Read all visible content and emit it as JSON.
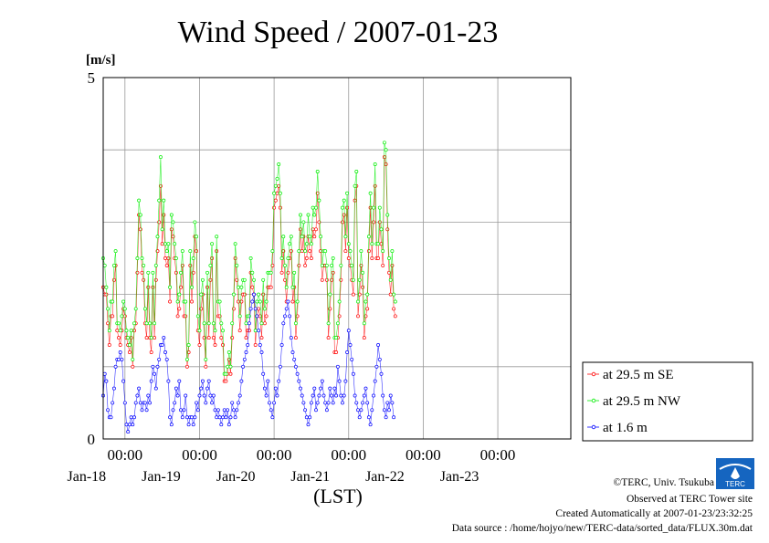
{
  "chart_data": {
    "type": "line",
    "title": "Wind Speed / 2007-01-23",
    "ylabel": "[m/s]",
    "xlabel": "(LST)",
    "ylim": [
      0,
      5
    ],
    "yticks": [
      "0",
      "5"
    ],
    "grid": true,
    "legend_placement": "right",
    "x_start": "2007-01-17T17:00",
    "x_end": "2007-01-23T23:30",
    "x_interval": "30 min",
    "xticks": [
      {
        "time": "00:00",
        "date": "Jan-18"
      },
      {
        "time": "00:00",
        "date": "Jan-19"
      },
      {
        "time": "00:00",
        "date": "Jan-20"
      },
      {
        "time": "00:00",
        "date": "Jan-21"
      },
      {
        "time": "00:00",
        "date": "Jan-22"
      },
      {
        "time": "00:00",
        "date": "Jan-23"
      }
    ],
    "series": [
      {
        "name": "at 29.5 m SE",
        "color": "#ff0000",
        "values": [
          2.1,
          2.0,
          2.0,
          1.6,
          1.3,
          1.7,
          1.7,
          2.2,
          2.4,
          1.5,
          1.4,
          1.3,
          1.5,
          1.8,
          1.7,
          1.4,
          1.3,
          1.2,
          1.4,
          1.0,
          1.5,
          1.6,
          2.3,
          3.1,
          2.9,
          2.3,
          2.2,
          1.6,
          1.4,
          2.1,
          1.4,
          1.2,
          2.1,
          1.4,
          2.2,
          2.6,
          3.0,
          3.5,
          2.7,
          3.1,
          2.5,
          2.4,
          2.5,
          1.9,
          2.9,
          2.8,
          2.5,
          2.3,
          1.7,
          1.8,
          2.1,
          2.4,
          1.7,
          1.7,
          1.0,
          1.2,
          2.4,
          1.9,
          2.3,
          2.8,
          2.6,
          1.5,
          1.3,
          1.8,
          2.0,
          1.4,
          1.0,
          2.1,
          1.4,
          2.2,
          2.5,
          1.4,
          1.3,
          2.6,
          1.7,
          1.7,
          1.4,
          1.3,
          0.8,
          0.8,
          0.9,
          1.1,
          0.9,
          1.4,
          1.8,
          2.5,
          2.2,
          1.9,
          1.5,
          1.9,
          2.0,
          2.0,
          1.4,
          1.5,
          1.5,
          2.3,
          2.1,
          2.0,
          1.3,
          1.7,
          1.8,
          1.7,
          1.4,
          2.0,
          1.6,
          1.7,
          2.1,
          2.1,
          2.1,
          2.4,
          3.2,
          3.3,
          3.4,
          3.5,
          3.2,
          2.3,
          2.6,
          2.2,
          1.9,
          2.3,
          2.5,
          2.6,
          1.9,
          2.1,
          1.4,
          1.7,
          2.4,
          2.9,
          2.6,
          2.8,
          2.4,
          2.5,
          2.8,
          2.6,
          2.5,
          2.9,
          2.8,
          2.9,
          3.4,
          3.0,
          2.6,
          2.2,
          2.4,
          2.4,
          2.2,
          1.4,
          1.8,
          2.2,
          2.3,
          1.2,
          1.2,
          1.4,
          1.7,
          2.2,
          3.0,
          3.1,
          2.6,
          3.2,
          2.5,
          2.4,
          2.2,
          2.0,
          3.3,
          3.5,
          1.7,
          2.0,
          2.4,
          2.1,
          1.4,
          1.7,
          1.8,
          2.6,
          3.2,
          2.5,
          3.0,
          3.5,
          2.5,
          2.5,
          3.0,
          2.7,
          2.4,
          3.9,
          3.8,
          2.9,
          2.3,
          2.0,
          2.4,
          1.8,
          1.7
        ]
      },
      {
        "name": "at 29.5 m NW",
        "color": "#00ee00",
        "values": [
          2.5,
          2.4,
          2.1,
          1.8,
          1.5,
          1.9,
          1.9,
          2.4,
          2.6,
          1.6,
          1.6,
          1.5,
          1.7,
          1.9,
          1.8,
          1.5,
          1.4,
          1.3,
          1.5,
          1.1,
          1.6,
          1.8,
          2.5,
          3.3,
          3.1,
          2.5,
          2.4,
          1.8,
          1.6,
          2.3,
          1.6,
          1.4,
          2.3,
          1.6,
          2.4,
          2.8,
          3.3,
          3.9,
          2.9,
          3.3,
          2.7,
          2.6,
          2.7,
          2.1,
          3.1,
          3.0,
          2.7,
          2.5,
          1.9,
          2.0,
          2.3,
          2.6,
          1.9,
          1.9,
          1.1,
          1.3,
          2.6,
          2.1,
          2.5,
          3.0,
          2.8,
          1.7,
          1.5,
          2.0,
          2.2,
          1.6,
          1.1,
          2.3,
          1.6,
          2.4,
          2.7,
          1.6,
          1.5,
          2.8,
          1.9,
          1.9,
          1.6,
          1.5,
          0.9,
          0.9,
          1.0,
          1.2,
          1.0,
          1.6,
          2.0,
          2.7,
          2.4,
          2.1,
          1.7,
          2.1,
          2.2,
          2.2,
          1.6,
          1.7,
          1.7,
          2.5,
          2.3,
          2.2,
          1.5,
          1.9,
          2.0,
          1.9,
          1.6,
          2.2,
          1.8,
          1.9,
          2.3,
          2.3,
          2.3,
          2.6,
          3.4,
          3.5,
          3.6,
          3.8,
          3.4,
          2.5,
          2.8,
          2.4,
          2.1,
          2.5,
          2.7,
          2.8,
          2.1,
          2.3,
          1.6,
          1.9,
          2.6,
          3.1,
          2.8,
          3.0,
          2.6,
          2.7,
          3.1,
          2.8,
          2.7,
          3.2,
          3.1,
          3.2,
          3.7,
          3.3,
          2.8,
          2.4,
          2.6,
          2.6,
          2.4,
          1.6,
          2.0,
          2.4,
          2.5,
          1.4,
          1.4,
          1.6,
          1.9,
          2.4,
          3.2,
          3.3,
          2.8,
          3.4,
          2.7,
          2.6,
          2.4,
          2.2,
          3.5,
          3.7,
          1.9,
          2.2,
          2.6,
          2.3,
          1.6,
          1.9,
          2.0,
          2.8,
          3.4,
          2.7,
          3.2,
          3.8,
          2.7,
          2.7,
          3.2,
          2.9,
          2.6,
          4.1,
          4.0,
          3.1,
          2.5,
          2.2,
          2.6,
          2.0,
          1.9
        ]
      },
      {
        "name": "at 1.6 m",
        "color": "#0000ff",
        "values": [
          0.6,
          0.9,
          0.8,
          0.4,
          0.3,
          0.3,
          0.5,
          0.7,
          1.0,
          1.1,
          1.1,
          1.2,
          1.1,
          0.8,
          0.5,
          0.2,
          0.1,
          0.2,
          0.3,
          0.2,
          0.3,
          0.5,
          0.6,
          0.7,
          0.5,
          0.4,
          0.5,
          0.5,
          0.4,
          0.6,
          0.5,
          0.8,
          1.0,
          0.9,
          0.7,
          1.0,
          1.1,
          1.3,
          1.3,
          1.4,
          1.2,
          1.1,
          0.8,
          0.3,
          0.2,
          0.4,
          0.5,
          0.7,
          0.6,
          0.8,
          0.4,
          0.3,
          0.4,
          0.6,
          0.3,
          0.2,
          0.3,
          0.3,
          0.2,
          0.3,
          0.5,
          0.4,
          0.6,
          0.7,
          0.8,
          0.6,
          0.5,
          0.7,
          0.8,
          0.6,
          0.5,
          0.6,
          0.4,
          0.3,
          0.4,
          0.3,
          0.2,
          0.3,
          0.4,
          0.3,
          0.4,
          0.2,
          0.3,
          0.5,
          0.4,
          0.3,
          0.4,
          0.5,
          0.6,
          0.8,
          1.0,
          1.1,
          1.2,
          1.3,
          1.6,
          1.8,
          1.9,
          2.0,
          1.8,
          1.7,
          1.5,
          1.3,
          1.2,
          0.9,
          0.7,
          0.6,
          0.8,
          0.5,
          0.4,
          0.3,
          0.5,
          0.7,
          0.6,
          0.8,
          1.0,
          1.3,
          1.6,
          1.7,
          1.8,
          1.9,
          1.7,
          1.4,
          1.2,
          1.1,
          1.0,
          0.9,
          0.8,
          0.7,
          0.6,
          0.5,
          0.4,
          0.3,
          0.2,
          0.3,
          0.5,
          0.6,
          0.7,
          0.4,
          0.5,
          0.6,
          0.7,
          0.8,
          0.6,
          0.5,
          0.4,
          0.5,
          0.7,
          0.6,
          0.5,
          0.7,
          0.6,
          1.0,
          0.8,
          0.6,
          0.5,
          0.6,
          0.8,
          1.2,
          1.5,
          1.3,
          1.1,
          0.9,
          0.6,
          0.5,
          0.4,
          0.3,
          0.4,
          0.5,
          0.6,
          0.7,
          0.5,
          0.3,
          0.2,
          0.4,
          0.6,
          0.8,
          1.0,
          1.3,
          1.1,
          0.9,
          0.6,
          0.4,
          0.3,
          0.5,
          0.4,
          0.6,
          0.5,
          0.3
        ]
      }
    ]
  },
  "credits": {
    "copyright": "©TERC, Univ. Tsukuba",
    "site": "Observed at TERC Tower site",
    "created": "Created Automatically at 2007-01-23/23:32:25",
    "source": "Data source : /home/hojyo/new/TERC-data/sorted_data/FLUX.30m.dat",
    "logo_text": "TERC",
    "logo_icon": "terc-logo-icon"
  }
}
